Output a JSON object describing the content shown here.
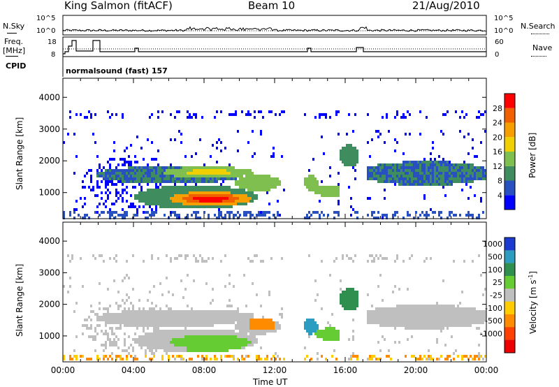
{
  "header": {
    "station": "King Salmon (fitACF)",
    "beam": "Beam 10",
    "date": "21/Aug/2010"
  },
  "panel_labels": {
    "nsky": "N.Sky",
    "nsearch": "N.Search",
    "freq_line1": "Freq.",
    "freq_line2": "[MHz]",
    "nave": "Nave",
    "cpid": "CPID",
    "cpid_value": "normalsound (fast) 157",
    "nsky_ticks": [
      "10^5",
      "10^0"
    ],
    "nsearch_ticks": [
      "10^5",
      "10^0"
    ],
    "freq_ticks": [
      "18",
      "8"
    ],
    "nave_ticks": [
      "60",
      "0"
    ]
  },
  "chart_data": [
    {
      "type": "heatmap",
      "name": "power-panel",
      "ylabel": "Slant Range [km]",
      "ylim": [
        180,
        4600
      ],
      "yticks": [
        1000,
        2000,
        3000,
        4000
      ],
      "xlim": [
        0,
        24
      ],
      "colorbar": {
        "label": "Power [dB]",
        "ticks": [
          "4",
          "8",
          "12",
          "16",
          "20",
          "24",
          "28"
        ],
        "colors": [
          "#0000ff",
          "#2850c0",
          "#3f8d5f",
          "#7fbf4f",
          "#f0d000",
          "#f5a000",
          "#f06000",
          "#ff0000"
        ]
      }
    },
    {
      "type": "heatmap",
      "name": "velocity-panel",
      "ylabel": "Slant Range [km]",
      "ylim": [
        180,
        4600
      ],
      "yticks": [
        1000,
        2000,
        3000,
        4000
      ],
      "xlim": [
        0,
        24
      ],
      "colorbar": {
        "label": "Velocity [m s",
        "label_sup": "-1",
        "label_end": "]",
        "ticks": [
          "1000",
          "500",
          "100",
          "25",
          "-25",
          "-100",
          "-500",
          "-1000"
        ],
        "colors": [
          "#1a3ad0",
          "#2c9cc0",
          "#2f8f4f",
          "#66cc33",
          "#bfbfbf",
          "#ffcc00",
          "#ff8c00",
          "#ff4000",
          "#ee0000"
        ]
      }
    }
  ],
  "time_axis": {
    "label": "Time UT",
    "ticks": [
      "00:00",
      "04:00",
      "08:00",
      "12:00",
      "16:00",
      "20:00",
      "00:00"
    ]
  }
}
